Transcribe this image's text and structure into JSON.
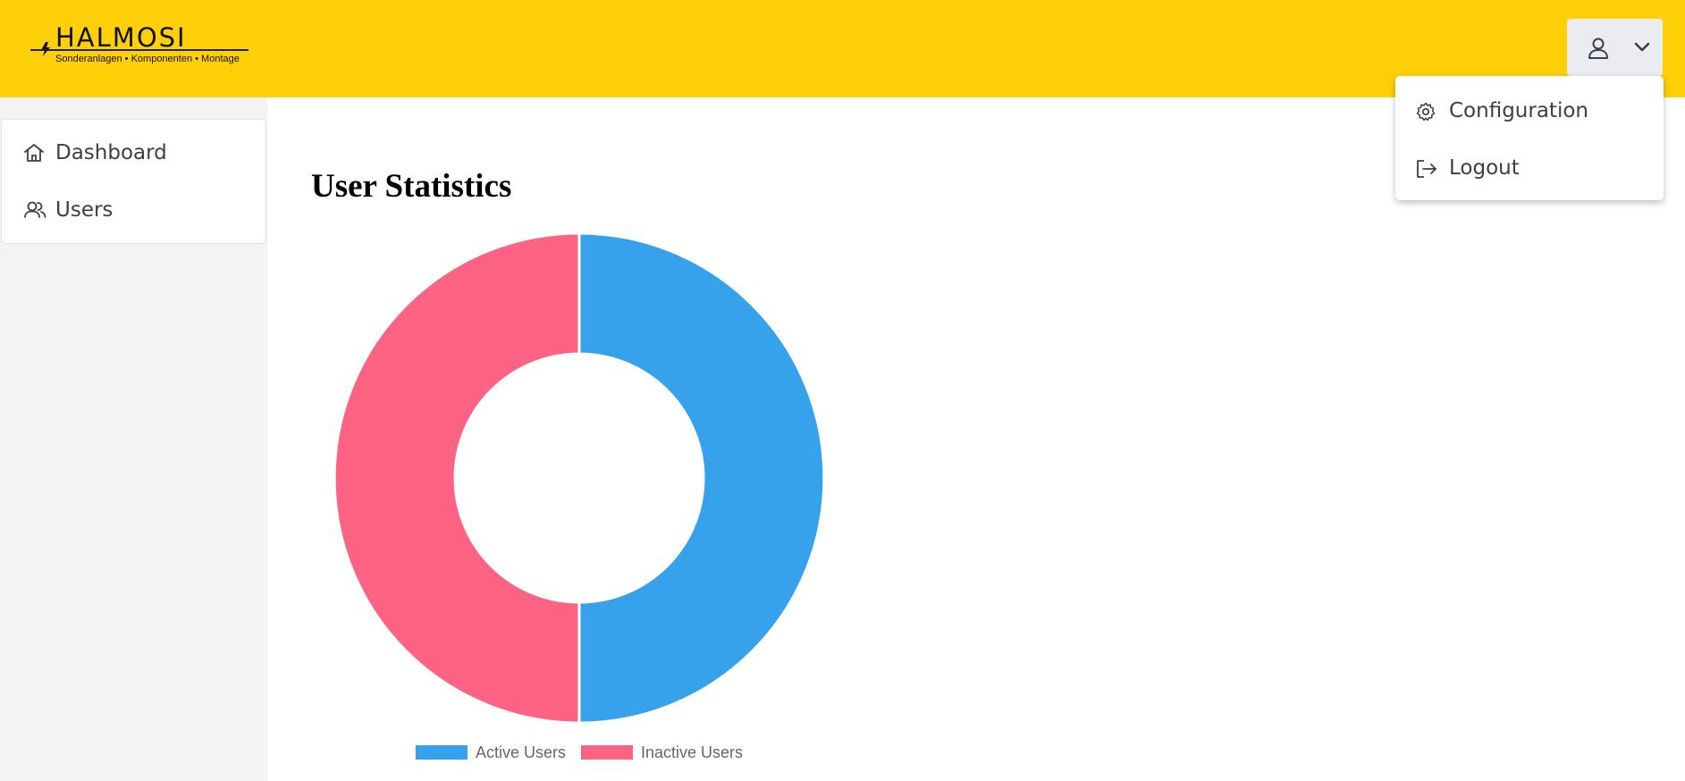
{
  "header": {
    "logo_title": "HALMOSI",
    "logo_subtitle": "Sonderanlagen • Komponenten • Montage",
    "background_color": "#ffcf07",
    "user_button_icon": "user-icon",
    "user_button_chevron": "chevron-down-icon"
  },
  "user_menu": {
    "open": true,
    "items": [
      {
        "label": "Configuration",
        "icon": "gear-icon"
      },
      {
        "label": "Logout",
        "icon": "logout-icon"
      }
    ]
  },
  "sidebar": {
    "items": [
      {
        "label": "Dashboard",
        "icon": "home-icon"
      },
      {
        "label": "Users",
        "icon": "users-icon"
      }
    ]
  },
  "main": {
    "title": "User Statistics"
  },
  "chart_data": {
    "type": "pie",
    "variant": "doughnut",
    "categories": [
      "Active Users",
      "Inactive Users"
    ],
    "values": [
      1,
      1
    ],
    "colors": [
      "#36a2eb",
      "#ff6384"
    ],
    "legend": "bottom",
    "title": ""
  }
}
